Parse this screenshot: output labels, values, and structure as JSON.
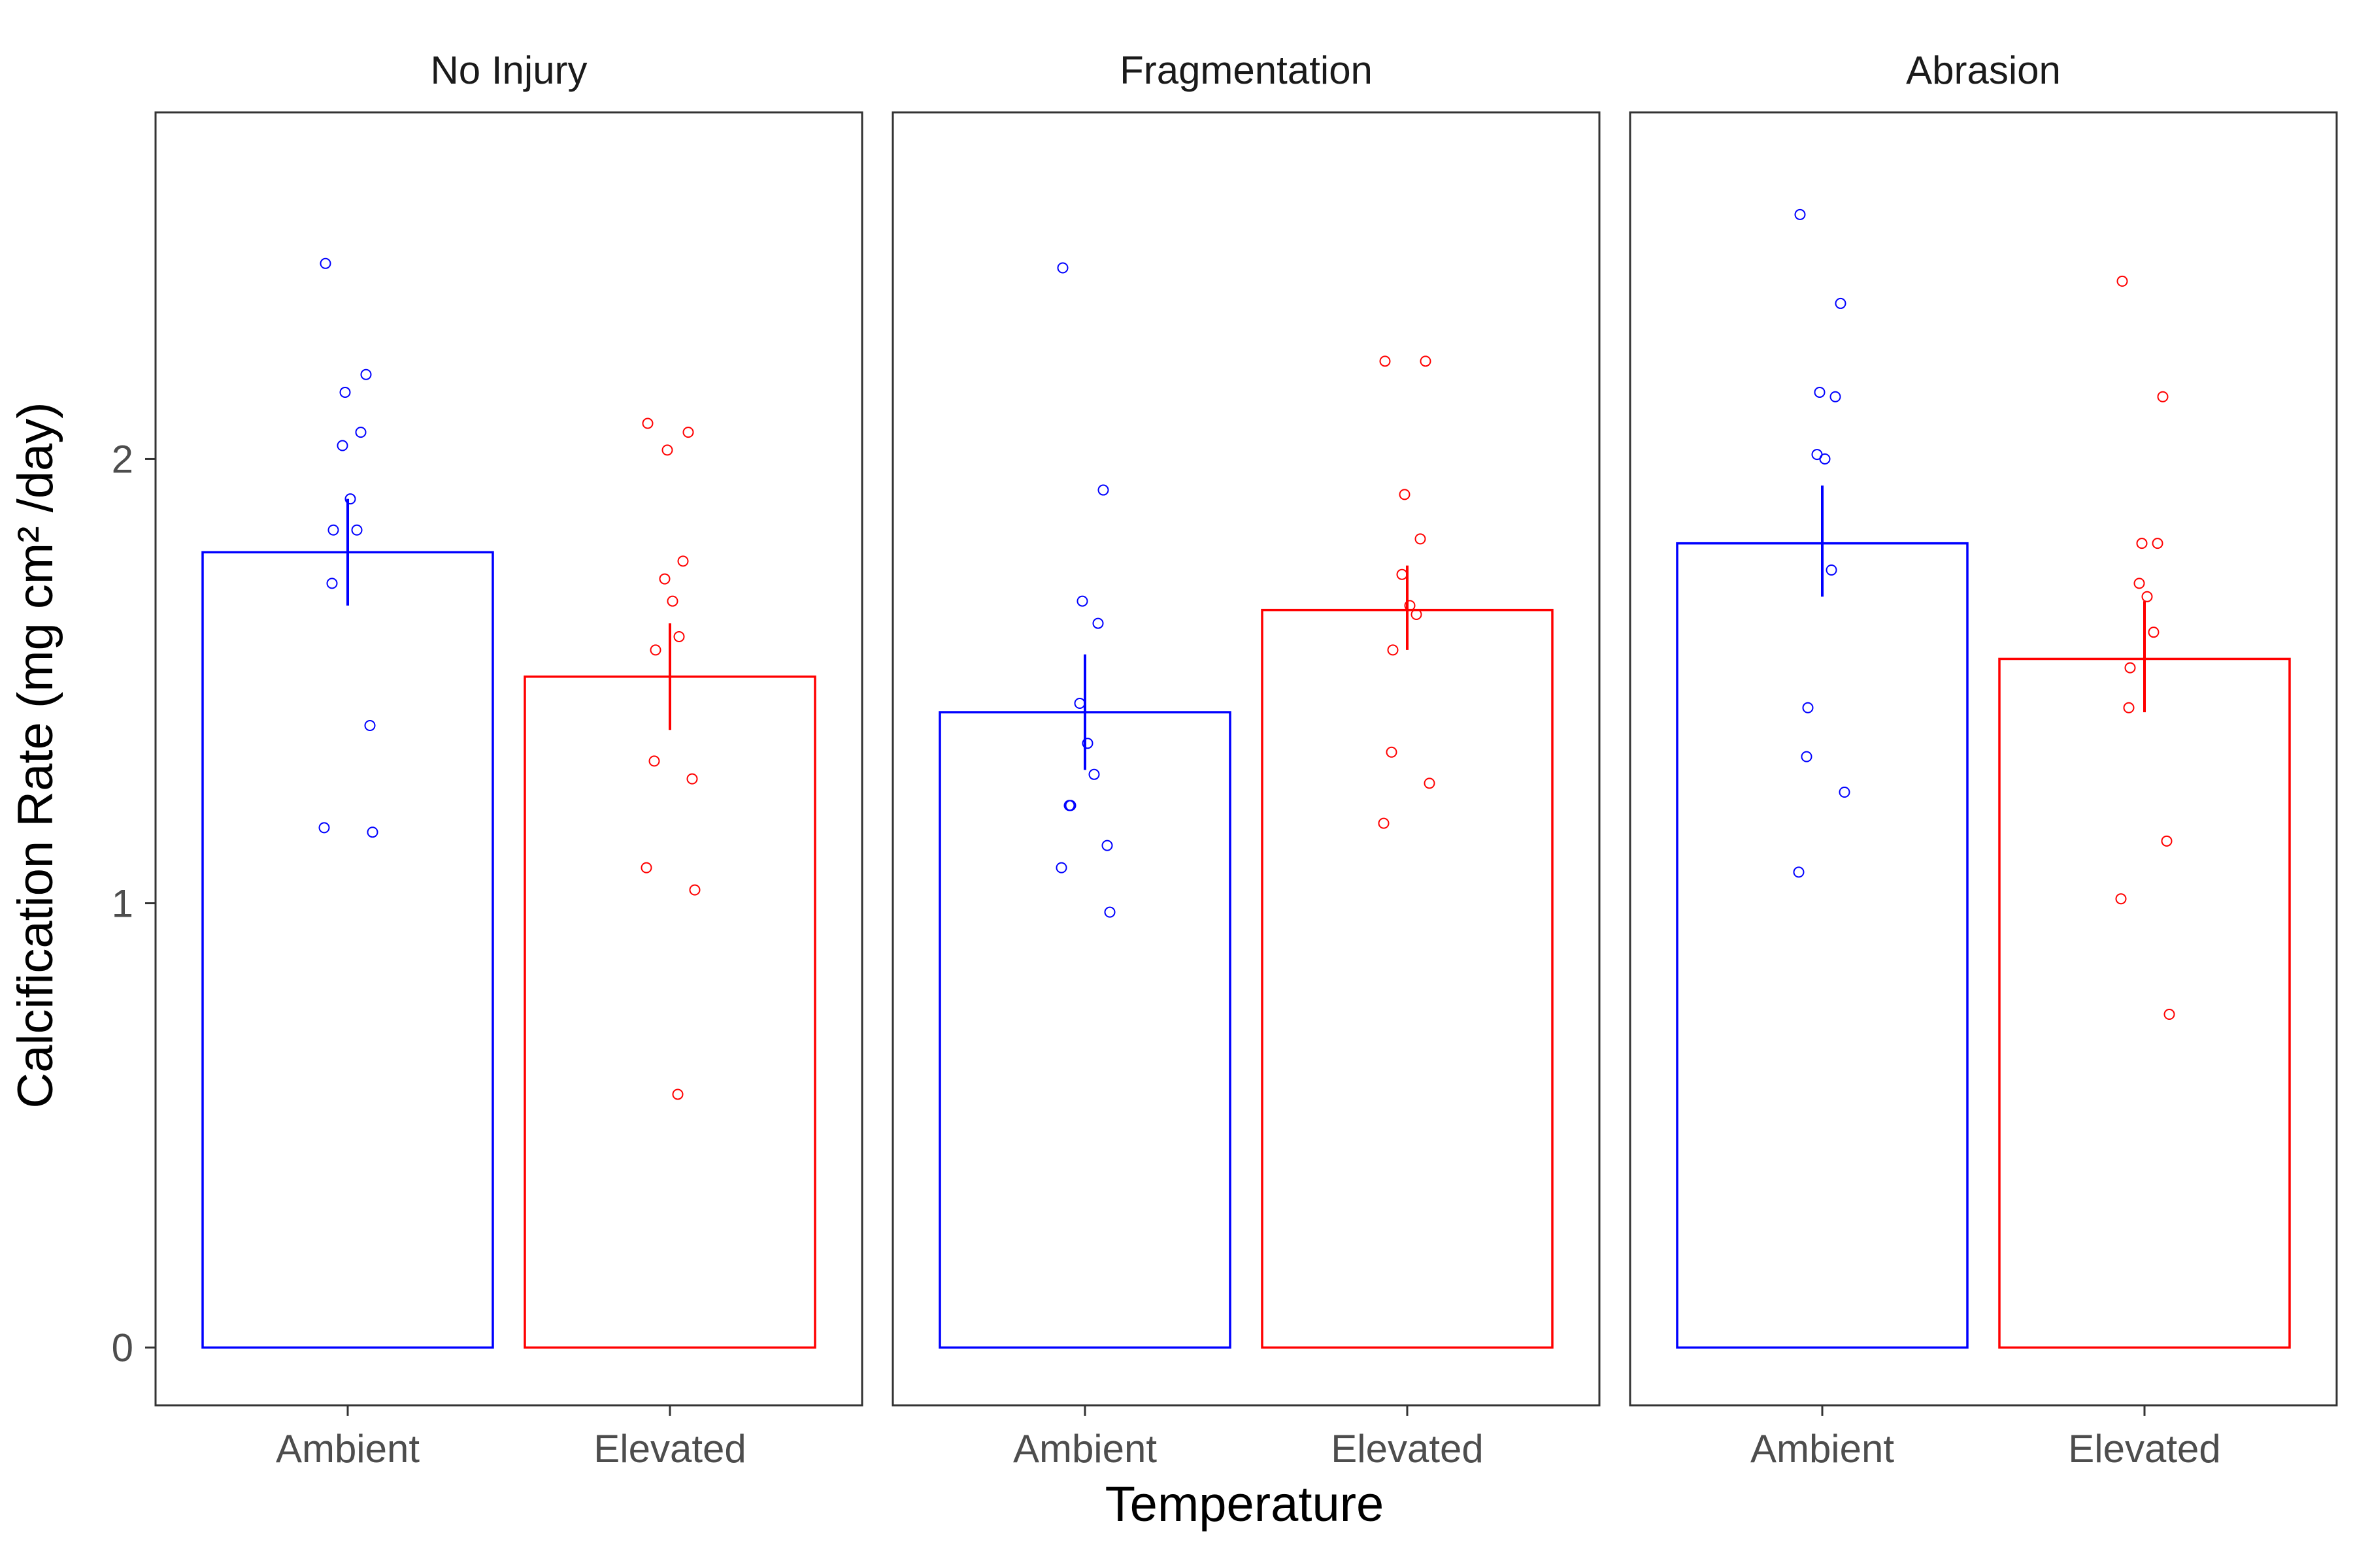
{
  "chart_data": {
    "type": "bar",
    "ylabel": "Calcification Rate (mg cm² /day)",
    "xlabel": "Temperature",
    "ylim": [
      -0.13,
      2.78
    ],
    "yticks": [
      0,
      1,
      2
    ],
    "categories": [
      "Ambient",
      "Elevated"
    ],
    "colors": {
      "Ambient": "#0000ff",
      "Elevated": "#ff0000"
    },
    "grid": false,
    "legend": "none",
    "facets": [
      {
        "title": "No Injury",
        "bars": [
          {
            "category": "Ambient",
            "mean": 1.79,
            "se_low": 1.67,
            "se_high": 1.91,
            "points": [
              2.44,
              2.19,
              2.15,
              2.06,
              2.03,
              1.91,
              1.84,
              1.84,
              1.72,
              1.4,
              1.17,
              1.16
            ]
          },
          {
            "category": "Elevated",
            "mean": 1.51,
            "se_low": 1.39,
            "se_high": 1.63,
            "points": [
              2.08,
              2.06,
              2.02,
              1.77,
              1.73,
              1.68,
              1.6,
              1.57,
              1.32,
              1.28,
              1.08,
              1.03,
              0.57
            ]
          }
        ]
      },
      {
        "title": "Fragmentation",
        "bars": [
          {
            "category": "Ambient",
            "mean": 1.43,
            "se_low": 1.3,
            "se_high": 1.56,
            "points": [
              2.43,
              1.93,
              1.68,
              1.63,
              1.45,
              1.36,
              1.29,
              1.22,
              1.22,
              1.13,
              1.08,
              0.98
            ]
          },
          {
            "category": "Elevated",
            "mean": 1.66,
            "se_low": 1.57,
            "se_high": 1.76,
            "points": [
              2.22,
              2.22,
              1.92,
              1.82,
              1.74,
              1.67,
              1.65,
              1.57,
              1.34,
              1.27,
              1.18
            ]
          }
        ]
      },
      {
        "title": "Abrasion",
        "bars": [
          {
            "category": "Ambient",
            "mean": 1.81,
            "se_low": 1.69,
            "se_high": 1.94,
            "points": [
              2.55,
              2.35,
              2.15,
              2.14,
              2.01,
              2.0,
              1.75,
              1.44,
              1.33,
              1.25,
              1.07
            ]
          },
          {
            "category": "Elevated",
            "mean": 1.55,
            "se_low": 1.43,
            "se_high": 1.68,
            "points": [
              2.4,
              2.14,
              1.81,
              1.81,
              1.72,
              1.69,
              1.61,
              1.53,
              1.44,
              1.14,
              1.01,
              0.75
            ]
          }
        ]
      }
    ]
  }
}
